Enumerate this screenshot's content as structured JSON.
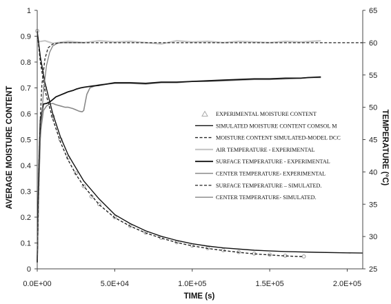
{
  "chart_data": {
    "type": "line",
    "xlabel": "TIME (s)",
    "ylabel": "AVERAGE MOISTURE CONTENT",
    "y2label": "TEMPERATURE (°C)",
    "xlim": [
      0,
      210000
    ],
    "ylim": [
      0,
      1
    ],
    "y2lim": [
      25,
      65
    ],
    "xticks": [
      {
        "v": 0,
        "label": "0.0E+00"
      },
      {
        "v": 50000,
        "label": "5.0E+04"
      },
      {
        "v": 100000,
        "label": "1.0E+05"
      },
      {
        "v": 150000,
        "label": "1.5E+05"
      },
      {
        "v": 200000,
        "label": "2.0E+05"
      }
    ],
    "yticks": [
      {
        "v": 0,
        "label": "0"
      },
      {
        "v": 0.1,
        "label": "0.1"
      },
      {
        "v": 0.2,
        "label": "0.2"
      },
      {
        "v": 0.3,
        "label": "0.3"
      },
      {
        "v": 0.4,
        "label": "0.4"
      },
      {
        "v": 0.5,
        "label": "0.5"
      },
      {
        "v": 0.6,
        "label": "0.6"
      },
      {
        "v": 0.7,
        "label": "0.7"
      },
      {
        "v": 0.8,
        "label": "0.8"
      },
      {
        "v": 0.9,
        "label": "0.9"
      },
      {
        "v": 1,
        "label": "1"
      }
    ],
    "y2ticks": [
      {
        "v": 25,
        "label": "25"
      },
      {
        "v": 30,
        "label": "30"
      },
      {
        "v": 35,
        "label": "35"
      },
      {
        "v": 40,
        "label": "40"
      },
      {
        "v": 45,
        "label": "45"
      },
      {
        "v": 50,
        "label": "50"
      },
      {
        "v": 55,
        "label": "55"
      },
      {
        "v": 60,
        "label": "60"
      },
      {
        "v": 65,
        "label": "65"
      }
    ],
    "grid": false,
    "legend_position": "center-right",
    "series": [
      {
        "name": "EXPERIMENTAL MOISTURE CONTENT",
        "axis": "left",
        "style": "marker",
        "color": "#aaaaaa",
        "x": [
          0,
          5000,
          10000,
          15000,
          20000,
          25000,
          30000,
          35000,
          40000,
          50000,
          60000,
          70000,
          80000,
          90000,
          100000,
          110000,
          120000,
          130000,
          140000,
          150000,
          160000,
          172000
        ],
        "y": [
          0.92,
          0.7,
          0.59,
          0.5,
          0.43,
          0.37,
          0.32,
          0.28,
          0.25,
          0.2,
          0.166,
          0.14,
          0.12,
          0.103,
          0.09,
          0.08,
          0.072,
          0.065,
          0.059,
          0.055,
          0.051,
          0.048
        ]
      },
      {
        "name": "SIMULATED MOISTURE CONTENT COMSOL M",
        "axis": "left",
        "style": "solid",
        "color": "#111111",
        "width": 1.4,
        "x": [
          0,
          2000,
          5000,
          10000,
          15000,
          20000,
          30000,
          40000,
          50000,
          60000,
          70000,
          80000,
          90000,
          100000,
          110000,
          120000,
          140000,
          160000,
          180000,
          200000,
          210000
        ],
        "y": [
          0.92,
          0.82,
          0.72,
          0.6,
          0.51,
          0.44,
          0.34,
          0.27,
          0.21,
          0.175,
          0.147,
          0.126,
          0.11,
          0.097,
          0.088,
          0.081,
          0.072,
          0.067,
          0.064,
          0.062,
          0.061
        ]
      },
      {
        "name": "MOISTURE CONTENT SIMULATED-MODEL DCC",
        "axis": "left",
        "style": "dashed",
        "color": "#222222",
        "width": 1.4,
        "x": [
          0,
          2000,
          5000,
          10000,
          15000,
          20000,
          25000,
          30000,
          40000,
          50000,
          60000,
          70000,
          80000,
          90000,
          100000,
          110000,
          120000,
          130000,
          140000,
          150000,
          160000,
          172000
        ],
        "y": [
          0.92,
          0.8,
          0.69,
          0.58,
          0.49,
          0.42,
          0.365,
          0.32,
          0.248,
          0.198,
          0.165,
          0.139,
          0.119,
          0.102,
          0.089,
          0.079,
          0.071,
          0.064,
          0.058,
          0.054,
          0.05,
          0.047
        ]
      },
      {
        "name": "AIR TEMPERATURE - EXPERIMENTAL",
        "axis": "right",
        "style": "solid",
        "color": "#c8c8c8",
        "width": 2.2,
        "x": [
          0,
          5000,
          10000,
          20000,
          30000,
          40000,
          50000,
          60000,
          70000,
          80000,
          90000,
          100000,
          110000,
          120000,
          130000,
          140000,
          150000,
          160000,
          170000,
          183000
        ],
        "y": [
          60.1,
          60.3,
          59.9,
          60.2,
          60.0,
          60.3,
          60.1,
          60.2,
          60.0,
          59.8,
          60.3,
          60.1,
          60.2,
          60.0,
          60.2,
          60.1,
          60.0,
          60.2,
          60.1,
          60.3
        ]
      },
      {
        "name": "SURFACE TEMPERATURE - EXPERIMENTAL",
        "axis": "right",
        "style": "solid",
        "color": "#111111",
        "width": 1.8,
        "x": [
          0,
          1000,
          2000,
          4000,
          6000,
          8000,
          10000,
          12000,
          15000,
          18000,
          20000,
          23000,
          25000,
          28000,
          30000,
          33000,
          36000,
          40000,
          45000,
          50000,
          60000,
          70000,
          80000,
          90000,
          100000,
          110000,
          120000,
          130000,
          140000,
          150000,
          160000,
          170000,
          175000,
          183000
        ],
        "y": [
          26,
          40,
          48,
          50.5,
          50.6,
          50.8,
          51.2,
          51.6,
          51.9,
          52.2,
          52.4,
          52.6,
          52.8,
          53.0,
          53.1,
          53.2,
          53.3,
          53.4,
          53.6,
          53.8,
          53.8,
          53.7,
          53.9,
          53.9,
          54.0,
          54.1,
          54.2,
          54.3,
          54.4,
          54.4,
          54.5,
          54.5,
          54.6,
          54.7
        ]
      },
      {
        "name": "CENTER TEMPERATURE- EXPERIMENTAL",
        "axis": "right",
        "style": "solid",
        "color": "#888888",
        "width": 1.6,
        "x": [
          0,
          1000,
          2000,
          4000,
          6000,
          8000,
          10000,
          12000,
          15000,
          18000,
          20000,
          23000,
          25000,
          27000,
          29000,
          30000,
          31000,
          32000,
          34000,
          37000,
          40000,
          45000,
          50000,
          60000,
          70000,
          80000,
          90000,
          100000,
          110000,
          120000,
          130000,
          140000,
          150000,
          160000,
          170000,
          175000,
          183000
        ],
        "y": [
          26,
          38,
          46,
          49.5,
          50.2,
          50.5,
          50.6,
          50.4,
          50.2,
          50.0,
          50.0,
          49.8,
          49.6,
          49.4,
          49.3,
          49.5,
          50.8,
          52.0,
          53.0,
          53.3,
          53.5,
          53.6,
          53.7,
          53.7,
          53.6,
          53.8,
          53.8,
          54.0,
          54.0,
          54.1,
          54.2,
          54.3,
          54.3,
          54.4,
          54.5,
          54.6,
          54.6
        ]
      },
      {
        "name": "SURFACE TEMPERATURE – SIMULATED.",
        "axis": "right",
        "style": "dashed",
        "color": "#333333",
        "width": 1.4,
        "x": [
          0,
          1000,
          2000,
          3000,
          5000,
          7000,
          10000,
          15000,
          20000,
          30000,
          50000,
          100000,
          150000,
          200000,
          210000
        ],
        "y": [
          26,
          40,
          48.5,
          53.5,
          57.5,
          59.2,
          59.8,
          60.0,
          60.0,
          60.0,
          60.0,
          60.0,
          60.0,
          60.0,
          60.0
        ]
      },
      {
        "name": "CENTER TEMPERATURE- SIMULATED.",
        "axis": "right",
        "style": "solid",
        "color": "#777777",
        "width": 1.2,
        "x": [
          0,
          1000,
          2000,
          4000,
          6000,
          8000,
          10000,
          13000,
          16000,
          20000,
          30000
        ],
        "y": [
          26,
          36,
          45,
          52.5,
          56.5,
          58.5,
          59.5,
          59.9,
          60.0,
          60.0,
          60.0
        ]
      }
    ]
  }
}
